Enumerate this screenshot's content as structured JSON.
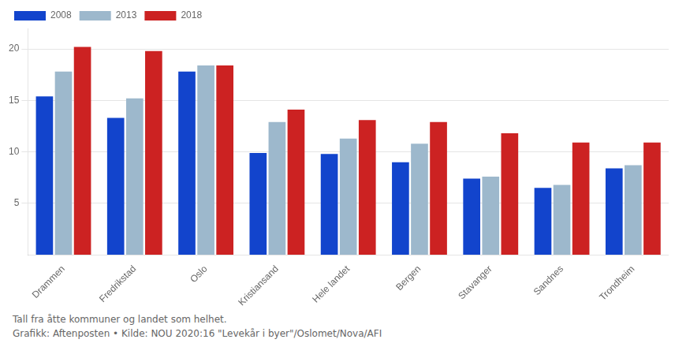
{
  "chart_data": {
    "type": "bar",
    "categories": [
      "Drammen",
      "Fredrikstad",
      "Oslo",
      "Kristiansand",
      "Hele landet",
      "Bergen",
      "Stavanger",
      "Sandnes",
      "Trondheim"
    ],
    "series": [
      {
        "name": "2008",
        "color": "#1244cc",
        "values": [
          15.4,
          13.3,
          17.8,
          9.9,
          9.8,
          9.0,
          7.4,
          6.5,
          8.4
        ]
      },
      {
        "name": "2013",
        "color": "#9db8cc",
        "values": [
          17.8,
          15.2,
          18.4,
          12.9,
          11.3,
          10.8,
          7.6,
          6.8,
          8.7
        ]
      },
      {
        "name": "2018",
        "color": "#cc2222",
        "values": [
          20.2,
          19.8,
          18.4,
          14.1,
          13.1,
          12.9,
          11.8,
          10.9,
          10.9
        ]
      }
    ],
    "ylim": [
      0,
      22
    ],
    "yticks": [
      5,
      10,
      15,
      20
    ],
    "grid": true,
    "legend": "upper left",
    "annotations": [
      "Tall fra åtte kommuner og landet som helhet.",
      "Grafikk: Aftenposten • Kilde: NOU 2020:16 \"Levekår i byer\"/Oslomet/Nova/AFI"
    ]
  }
}
